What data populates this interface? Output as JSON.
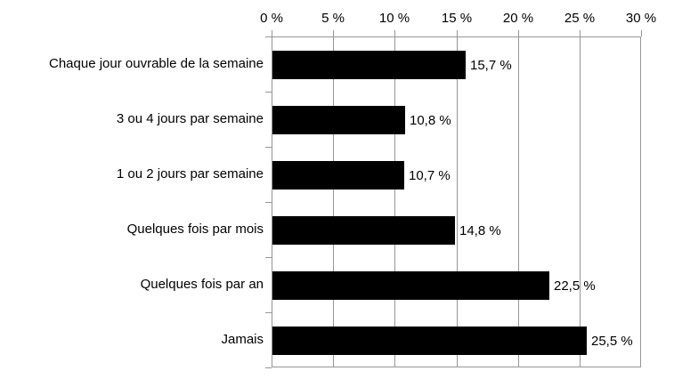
{
  "chart_data": {
    "type": "bar",
    "orientation": "horizontal",
    "title": "",
    "categories": [
      "Chaque jour ouvrable de la semaine",
      "3 ou 4 jours par semaine",
      "1 ou 2 jours par semaine",
      "Quelques fois par mois",
      "Quelques fois par an",
      "Jamais"
    ],
    "values": [
      15.7,
      10.8,
      10.7,
      14.8,
      22.5,
      25.5
    ],
    "value_labels": [
      "15,7 %",
      "10,8 %",
      "10,7 %",
      "14,8 %",
      "22,5 %",
      "25,5 %"
    ],
    "x_axis": {
      "position": "top",
      "min": 0,
      "max": 30,
      "tick_values": [
        0,
        5,
        10,
        15,
        20,
        25,
        30
      ],
      "tick_labels": [
        "0 %",
        "5 %",
        "10 %",
        "15 %",
        "20 %",
        "25 %",
        "30 %"
      ]
    },
    "grid": true,
    "legend": false,
    "colors": {
      "bar": "#000000",
      "grid": "#969696",
      "text": "#000000",
      "background": "#ffffff"
    }
  }
}
